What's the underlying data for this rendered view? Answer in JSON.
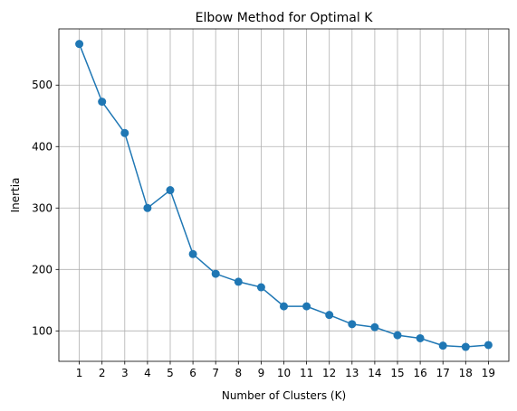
{
  "chart_data": {
    "type": "line",
    "title": "Elbow Method for Optimal K",
    "xlabel": "Number of Clusters (K)",
    "ylabel": "Inertia",
    "x": [
      1,
      2,
      3,
      4,
      5,
      6,
      7,
      8,
      9,
      10,
      11,
      12,
      13,
      14,
      15,
      16,
      17,
      18,
      19
    ],
    "series": [
      {
        "values": [
          567,
          473,
          422,
          300,
          329,
          225,
          193,
          180,
          171,
          140,
          140,
          126,
          111,
          106,
          93,
          88,
          76,
          74,
          77
        ],
        "color": "#1f77b4",
        "marker": "circle"
      }
    ],
    "xticks": [
      1,
      2,
      3,
      4,
      5,
      6,
      7,
      8,
      9,
      10,
      11,
      12,
      13,
      14,
      15,
      16,
      17,
      18,
      19
    ],
    "yticks": [
      100,
      200,
      300,
      400,
      500
    ],
    "xlim": [
      0.1,
      19.9
    ],
    "ylim": [
      50.5,
      591.5
    ],
    "grid": true
  }
}
